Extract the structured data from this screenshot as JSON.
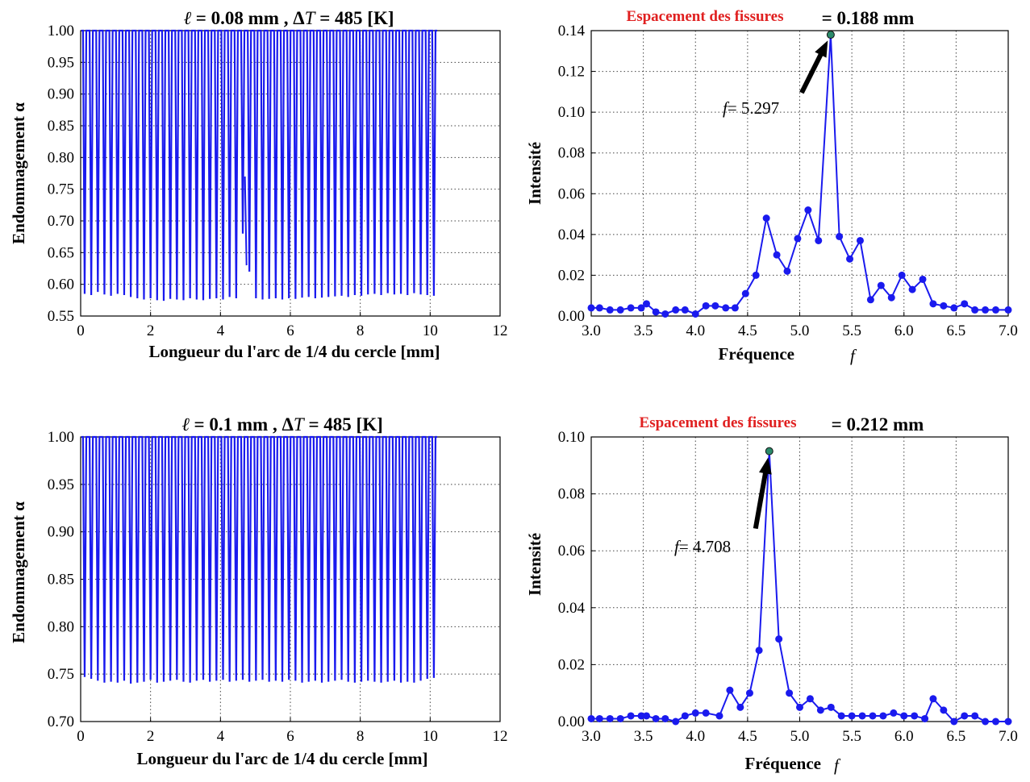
{
  "chart_data": [
    {
      "type": "line",
      "title": "ℓ = 0.08 mm , ΔT = 485 [K]",
      "title_parts": {
        "var": "ℓ",
        "mid": " = 0.08 mm , Δ",
        "var2": "T",
        "end": " = 485 [K]"
      },
      "xlabel": "Longueur du l'arc de 1/4 du cercle  [mm]",
      "ylabel": "Endommagement α",
      "xlim": [
        0,
        12
      ],
      "ylim": [
        0.55,
        1.0
      ],
      "xticks": [
        "0",
        "2",
        "4",
        "6",
        "8",
        "10",
        "12"
      ],
      "yticks": [
        "0.55",
        "0.60",
        "0.65",
        "0.70",
        "0.75",
        "0.80",
        "0.85",
        "0.90",
        "0.95",
        "1.00"
      ],
      "grid": true,
      "color": "#1a1aee",
      "series": [
        {
          "x_start": 0.02,
          "x_end": 10.2,
          "peaks": 54,
          "max": 1.0,
          "min_values": [
            0.585,
            0.583,
            0.588,
            0.584,
            0.582,
            0.585,
            0.583,
            0.58,
            0.578,
            0.576,
            0.578,
            0.575,
            0.574,
            0.577,
            0.576,
            0.575,
            0.578,
            0.576,
            0.575,
            0.577,
            0.578,
            0.576,
            0.58,
            0.578,
            0.68,
            0.62,
            0.578,
            0.576,
            0.577,
            0.578,
            0.576,
            0.578,
            0.577,
            0.579,
            0.58,
            0.578,
            0.579,
            0.58,
            0.581,
            0.582,
            0.58,
            0.583,
            0.582,
            0.584,
            0.585,
            0.583,
            0.586,
            0.584,
            0.585,
            0.583,
            0.586,
            0.584,
            0.583,
            0.582
          ],
          "anomaly": {
            "x": 4.7,
            "value": 0.77
          }
        }
      ]
    },
    {
      "type": "line",
      "title_red": "Espacement des fissures",
      "title_value": "= 0.188 mm",
      "xlabel": "Fréquence",
      "xlabel_var": "f",
      "ylabel": "Intensité",
      "xlim": [
        3.0,
        7.0
      ],
      "ylim": [
        0.0,
        0.14
      ],
      "xticks": [
        "3.0",
        "3.5",
        "4.0",
        "4.5",
        "5.0",
        "5.5",
        "6.0",
        "6.5",
        "7.0"
      ],
      "yticks": [
        "0.00",
        "0.02",
        "0.04",
        "0.06",
        "0.08",
        "0.10",
        "0.12",
        "0.14"
      ],
      "grid": true,
      "color": "#1a1aee",
      "annotation": {
        "label_var": "f",
        "label_text": "= 5.297",
        "x": 5.297,
        "y": 0.138
      },
      "series": [
        {
          "x": [
            3.0,
            3.08,
            3.18,
            3.28,
            3.38,
            3.48,
            3.53,
            3.62,
            3.71,
            3.81,
            3.9,
            4.0,
            4.1,
            4.19,
            4.29,
            4.38,
            4.48,
            4.58,
            4.68,
            4.78,
            4.88,
            4.98,
            5.08,
            5.18,
            5.297,
            5.38,
            5.48,
            5.58,
            5.68,
            5.78,
            5.88,
            5.98,
            6.08,
            6.18,
            6.28,
            6.38,
            6.48,
            6.58,
            6.68,
            6.78,
            6.88,
            7.0
          ],
          "y": [
            0.004,
            0.004,
            0.003,
            0.003,
            0.004,
            0.004,
            0.006,
            0.002,
            0.001,
            0.003,
            0.003,
            0.001,
            0.005,
            0.005,
            0.004,
            0.004,
            0.011,
            0.02,
            0.048,
            0.03,
            0.022,
            0.038,
            0.052,
            0.037,
            0.138,
            0.039,
            0.028,
            0.037,
            0.008,
            0.015,
            0.009,
            0.02,
            0.013,
            0.018,
            0.006,
            0.005,
            0.004,
            0.006,
            0.003,
            0.003,
            0.003,
            0.003
          ]
        }
      ]
    },
    {
      "type": "line",
      "title": "ℓ = 0.1 mm , ΔT = 485 [K]",
      "title_parts": {
        "var": "ℓ",
        "mid": " = 0.1 mm , Δ",
        "var2": "T",
        "end": " = 485 [K]"
      },
      "xlabel": "Longueur du l'arc de 1/4 du cercle  [mm]",
      "ylabel": "Endommagement α",
      "xlim": [
        0,
        12
      ],
      "ylim": [
        0.7,
        1.0
      ],
      "xticks": [
        "0",
        "2",
        "4",
        "6",
        "8",
        "10",
        "12"
      ],
      "yticks": [
        "0.70",
        "0.75",
        "0.80",
        "0.85",
        "0.90",
        "0.95",
        "1.00"
      ],
      "grid": true,
      "color": "#1a1aee",
      "series": [
        {
          "x_start": 0.02,
          "x_end": 10.2,
          "peaks": 54,
          "max": 1.0,
          "min_values": [
            0.747,
            0.745,
            0.743,
            0.741,
            0.742,
            0.741,
            0.743,
            0.74,
            0.741,
            0.742,
            0.744,
            0.741,
            0.742,
            0.743,
            0.744,
            0.742,
            0.741,
            0.743,
            0.744,
            0.742,
            0.743,
            0.744,
            0.742,
            0.743,
            0.744,
            0.742,
            0.743,
            0.744,
            0.742,
            0.743,
            0.742,
            0.744,
            0.743,
            0.741,
            0.742,
            0.743,
            0.741,
            0.742,
            0.743,
            0.744,
            0.742,
            0.741,
            0.742,
            0.743,
            0.742,
            0.741,
            0.742,
            0.743,
            0.741,
            0.742,
            0.741,
            0.743,
            0.745,
            0.746
          ]
        }
      ]
    },
    {
      "type": "line",
      "title_red": "Espacement des fissures",
      "title_value": "= 0.212 mm",
      "xlabel": "Fréquence",
      "xlabel_var": "f",
      "ylabel": "Intensité",
      "xlim": [
        3.0,
        7.0
      ],
      "ylim": [
        0.0,
        0.1
      ],
      "xticks": [
        "3.0",
        "3.5",
        "4.0",
        "4.5",
        "5.0",
        "5.5",
        "6.0",
        "6.5",
        "7.0"
      ],
      "yticks": [
        "0.00",
        "0.02",
        "0.04",
        "0.06",
        "0.08",
        "0.10"
      ],
      "grid": true,
      "color": "#1a1aee",
      "annotation": {
        "label_var": "f",
        "label_text": "= 4.708",
        "x": 4.708,
        "y": 0.095
      },
      "series": [
        {
          "x": [
            3.0,
            3.08,
            3.18,
            3.28,
            3.38,
            3.48,
            3.53,
            3.62,
            3.71,
            3.81,
            3.9,
            4.0,
            4.1,
            4.23,
            4.33,
            4.43,
            4.52,
            4.61,
            4.708,
            4.8,
            4.9,
            5.0,
            5.1,
            5.2,
            5.3,
            5.4,
            5.5,
            5.6,
            5.7,
            5.8,
            5.9,
            6.0,
            6.1,
            6.2,
            6.28,
            6.38,
            6.48,
            6.58,
            6.68,
            6.78,
            6.88,
            7.0
          ],
          "y": [
            0.001,
            0.001,
            0.001,
            0.001,
            0.002,
            0.002,
            0.002,
            0.001,
            0.001,
            0.0,
            0.002,
            0.003,
            0.003,
            0.002,
            0.011,
            0.005,
            0.01,
            0.025,
            0.095,
            0.029,
            0.01,
            0.005,
            0.008,
            0.004,
            0.005,
            0.002,
            0.002,
            0.002,
            0.002,
            0.002,
            0.003,
            0.002,
            0.002,
            0.001,
            0.008,
            0.004,
            0.0,
            0.002,
            0.002,
            0.0,
            0.0,
            0.0
          ]
        }
      ]
    }
  ]
}
